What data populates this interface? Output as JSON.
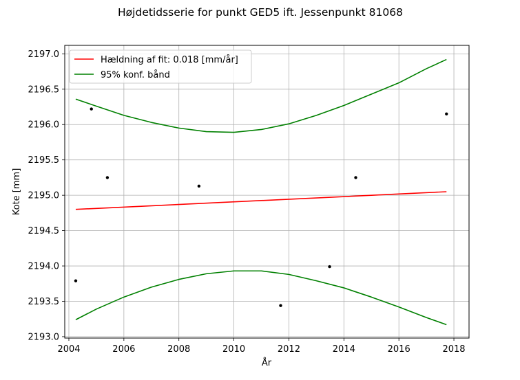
{
  "chart_data": {
    "type": "line",
    "title": "Højdetidsserie for punkt GED5 ift. Jessenpunkt 81068",
    "xlabel": "År",
    "ylabel": "Kote [mm]",
    "xlim": [
      2003.85,
      2018.55
    ],
    "ylim": [
      2192.98,
      2197.12
    ],
    "x_ticks": [
      2004,
      2006,
      2008,
      2010,
      2012,
      2014,
      2016,
      2018
    ],
    "y_ticks": [
      2193.0,
      2193.5,
      2194.0,
      2194.5,
      2195.0,
      2195.5,
      2196.0,
      2196.5,
      2197.0
    ],
    "grid": true,
    "legend_position": "top-left",
    "points": [
      {
        "x": 2004.25,
        "y": 2193.79
      },
      {
        "x": 2004.82,
        "y": 2196.22
      },
      {
        "x": 2005.4,
        "y": 2195.25
      },
      {
        "x": 2008.73,
        "y": 2195.13
      },
      {
        "x": 2011.7,
        "y": 2193.44
      },
      {
        "x": 2013.48,
        "y": 2193.99
      },
      {
        "x": 2014.43,
        "y": 2195.25
      },
      {
        "x": 2017.73,
        "y": 2196.15
      }
    ],
    "series": [
      {
        "name": "Hældning af fit: 0.018 [mm/år]",
        "color": "#ff0000",
        "x": [
          2004.25,
          2017.73
        ],
        "y": [
          2194.8,
          2195.05
        ]
      },
      {
        "name": "95% konf. bånd",
        "color": "#008000",
        "x": [
          2004.25,
          2005,
          2006,
          2007,
          2008,
          2009,
          2010,
          2011,
          2012,
          2013,
          2014,
          2015,
          2016,
          2017,
          2017.73
        ],
        "y_upper": [
          2196.36,
          2196.26,
          2196.13,
          2196.03,
          2195.95,
          2195.9,
          2195.89,
          2195.93,
          2196.01,
          2196.13,
          2196.27,
          2196.43,
          2196.59,
          2196.79,
          2196.92
        ],
        "y_lower": [
          2193.24,
          2193.39,
          2193.56,
          2193.7,
          2193.81,
          2193.89,
          2193.93,
          2193.93,
          2193.88,
          2193.79,
          2193.69,
          2193.56,
          2193.42,
          2193.27,
          2193.17
        ]
      }
    ]
  }
}
